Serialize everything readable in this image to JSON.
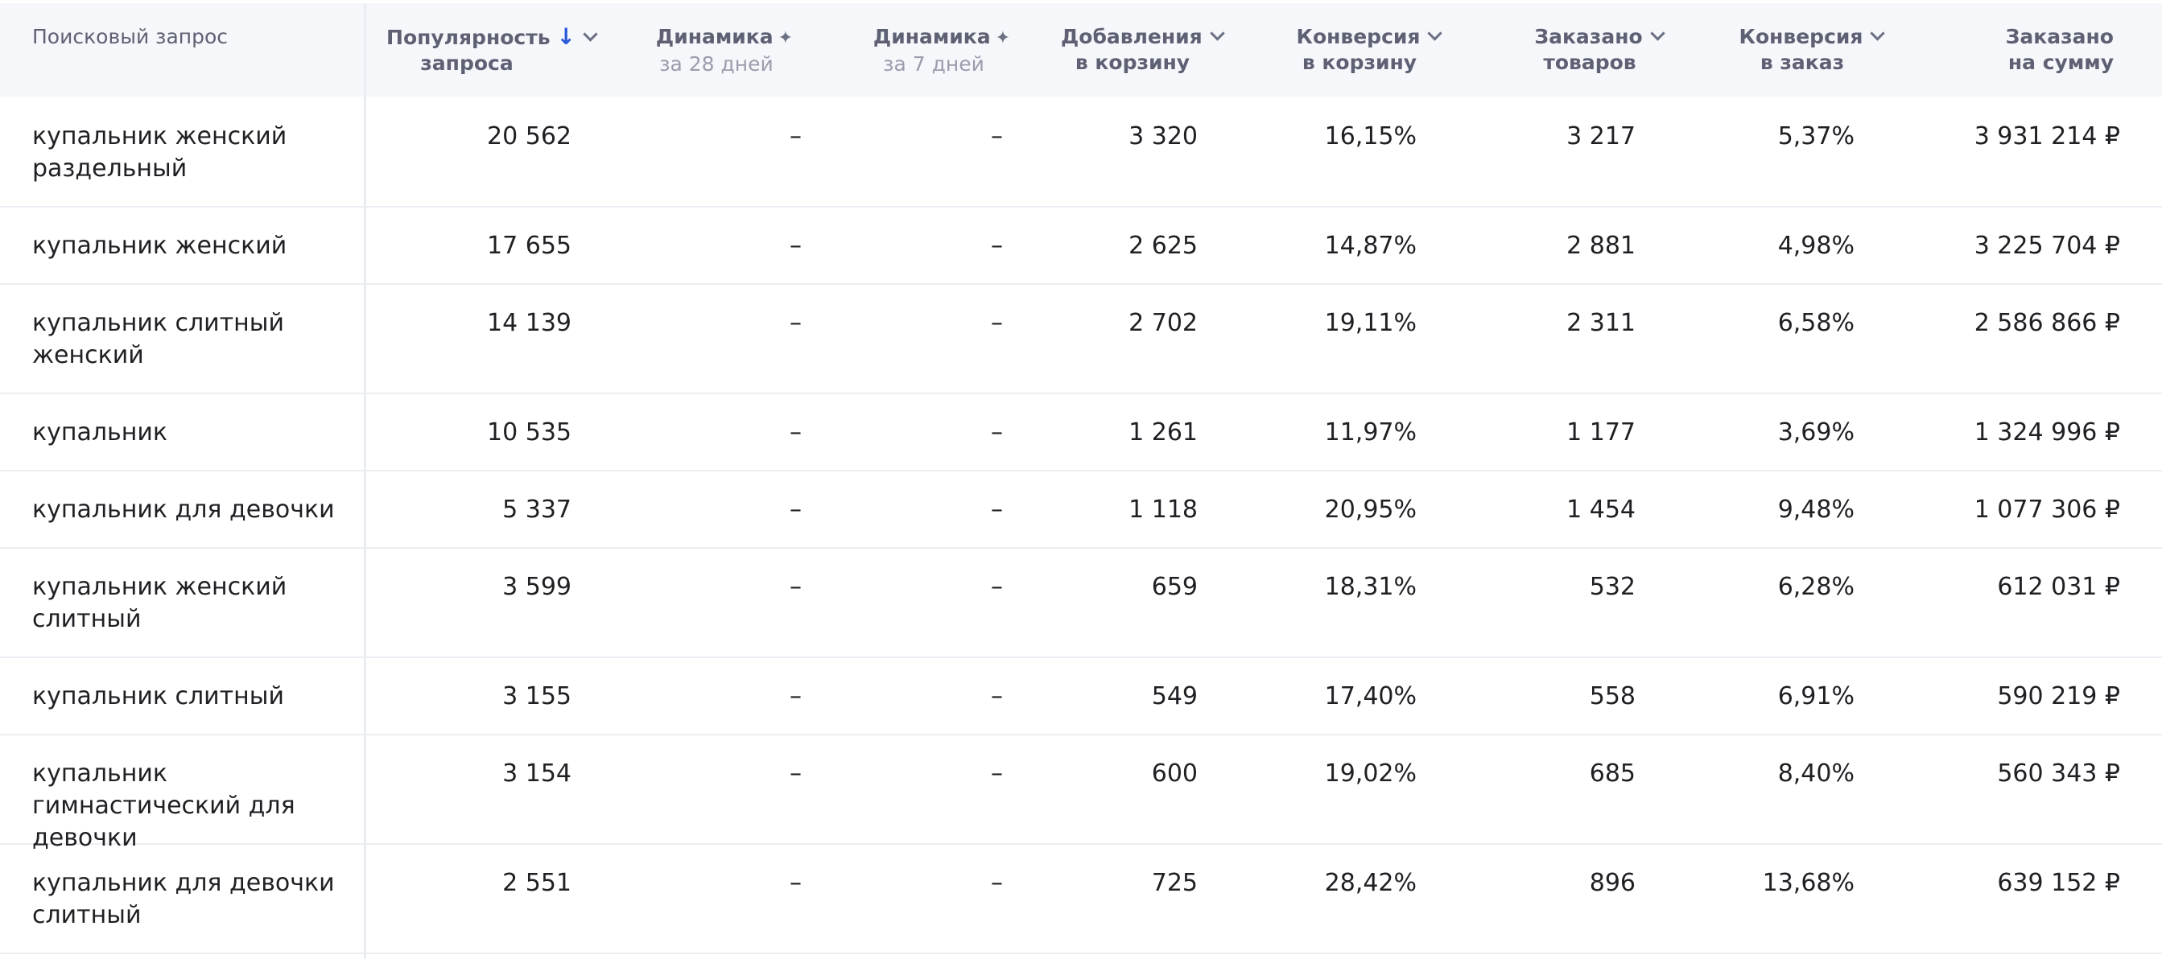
{
  "columns": [
    {
      "line1": "Поисковый запрос"
    },
    {
      "line1": "Популярность",
      "line2": "запроса",
      "icon": "sort-down-arrow-icon"
    },
    {
      "line1": "Динамика",
      "sub": "за 28 дней",
      "icon": "ai-sparkle-icon"
    },
    {
      "line1": "Динамика",
      "sub": "за 7 дней",
      "icon": "ai-sparkle-icon"
    },
    {
      "line1": "Добавления",
      "line2": "в корзину"
    },
    {
      "line1": "Конверсия",
      "line2": "в корзину"
    },
    {
      "line1": "Заказано",
      "line2": "товаров"
    },
    {
      "line1": "Конверсия",
      "line2": "в заказ"
    },
    {
      "line1": "Заказано",
      "line2": "на сумму"
    }
  ],
  "rows": [
    {
      "query": "купальник женский раздельный",
      "popularity": "20 562",
      "dyn28": "–",
      "dyn7": "–",
      "cart_adds": "3 320",
      "cart_conv": "16,15%",
      "ordered": "3 217",
      "order_conv": "5,37%",
      "sum": "3 931 214 ₽"
    },
    {
      "query": "купальник женский",
      "popularity": "17 655",
      "dyn28": "–",
      "dyn7": "–",
      "cart_adds": "2 625",
      "cart_conv": "14,87%",
      "ordered": "2 881",
      "order_conv": "4,98%",
      "sum": "3 225 704 ₽"
    },
    {
      "query": "купальник слитный женский",
      "popularity": "14 139",
      "dyn28": "–",
      "dyn7": "–",
      "cart_adds": "2 702",
      "cart_conv": "19,11%",
      "ordered": "2 311",
      "order_conv": "6,58%",
      "sum": "2 586 866 ₽"
    },
    {
      "query": "купальник",
      "popularity": "10 535",
      "dyn28": "–",
      "dyn7": "–",
      "cart_adds": "1 261",
      "cart_conv": "11,97%",
      "ordered": "1 177",
      "order_conv": "3,69%",
      "sum": "1 324 996 ₽"
    },
    {
      "query": "купальник для девочки",
      "popularity": "5 337",
      "dyn28": "–",
      "dyn7": "–",
      "cart_adds": "1 118",
      "cart_conv": "20,95%",
      "ordered": "1 454",
      "order_conv": "9,48%",
      "sum": "1 077 306 ₽"
    },
    {
      "query": "купальник женский слитный",
      "popularity": "3 599",
      "dyn28": "–",
      "dyn7": "–",
      "cart_adds": "659",
      "cart_conv": "18,31%",
      "ordered": "532",
      "order_conv": "6,28%",
      "sum": "612 031 ₽"
    },
    {
      "query": "купальник слитный",
      "popularity": "3 155",
      "dyn28": "–",
      "dyn7": "–",
      "cart_adds": "549",
      "cart_conv": "17,40%",
      "ordered": "558",
      "order_conv": "6,91%",
      "sum": "590 219 ₽"
    },
    {
      "query": "купальник гимнастический для девочки",
      "popularity": "3 154",
      "dyn28": "–",
      "dyn7": "–",
      "cart_adds": "600",
      "cart_conv": "19,02%",
      "ordered": "685",
      "order_conv": "8,40%",
      "sum": "560 343 ₽"
    },
    {
      "query": "купальник для девочки слитный",
      "popularity": "2 551",
      "dyn28": "–",
      "dyn7": "–",
      "cart_adds": "725",
      "cart_conv": "28,42%",
      "ordered": "896",
      "order_conv": "13,68%",
      "sum": "639 152 ₽"
    }
  ]
}
